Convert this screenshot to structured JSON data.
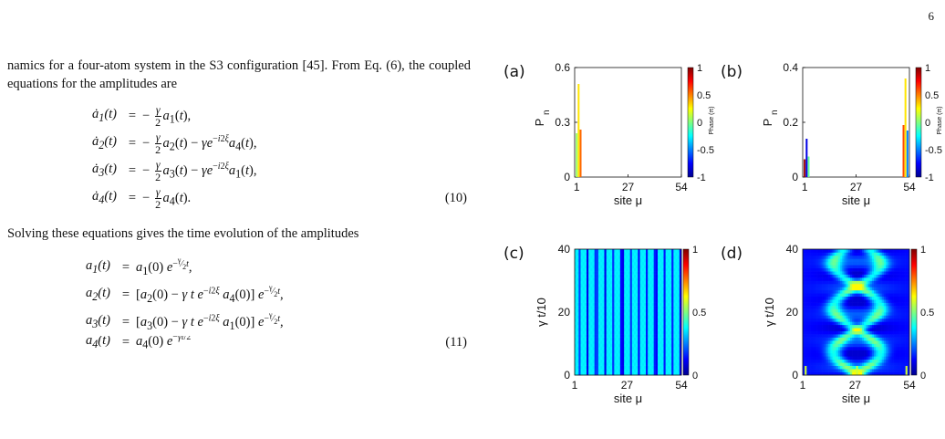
{
  "page_number": "6",
  "text": {
    "para1": "namics for a four-atom system in the S3 configuration [45]. From Eq. (6), the coupled equations for the amplitudes are",
    "para2": "Solving these equations gives the time evolution of the amplitudes",
    "eq10_number": "(10)",
    "eq11_number": "(11)",
    "eq10": [
      {
        "lhs": "ȧ₁(t)",
        "rhs": "a₁(t),"
      },
      {
        "lhs": "ȧ₂(t)",
        "rhs": "a₂(t) − γe^{−i2ξ} a₄(t),"
      },
      {
        "lhs": "ȧ₃(t)",
        "rhs": "a₃(t) − γe^{−i2ξ} a₁(t),"
      },
      {
        "lhs": "ȧ₄(t)",
        "rhs": "a₄(t)."
      }
    ],
    "eq11": [
      {
        "lhs": "a₁(t)",
        "rhs": "a₁(0) e^{−γt/2},"
      },
      {
        "lhs": "a₂(t)",
        "rhs": "[a₂(0) − γ t e^{−i2ξ} a₄(0)] e^{−γt/2},"
      },
      {
        "lhs": "a₃(t)",
        "rhs": "[a₃(0) − γ t e^{−i2ξ} a₁(0)] e^{−γt/2},"
      },
      {
        "lhs": "a₄(t)",
        "rhs": "a₄(0) e^{−γt/2}"
      }
    ]
  },
  "chart_data": [
    {
      "panel": "(a)",
      "type": "bar",
      "xlabel": "site μ",
      "ylabel": "P_n",
      "xticks": [
        1,
        27,
        54
      ],
      "yticks": [
        "0",
        "0.3",
        "0.6"
      ],
      "ylim": [
        0,
        0.6
      ],
      "xlim": [
        0,
        54
      ],
      "colorbar": {
        "label": "Phase (π)",
        "ticks": [
          "1",
          "0.5",
          "0",
          "-0.5",
          "-1"
        ]
      },
      "bars": [
        {
          "site": 1,
          "value": 0.24,
          "phase": 0.05
        },
        {
          "site": 2,
          "value": 0.51,
          "phase": 0.3
        },
        {
          "site": 3,
          "value": 0.26,
          "phase": 0.55
        }
      ]
    },
    {
      "panel": "(b)",
      "type": "bar",
      "xlabel": "site μ",
      "ylabel": "P_n",
      "xticks": [
        1,
        27,
        54
      ],
      "yticks": [
        "0",
        "0.2",
        "0.4"
      ],
      "ylim": [
        0,
        0.4
      ],
      "xlim": [
        0,
        54
      ],
      "colorbar": {
        "label": "Phase (π)",
        "ticks": [
          "1",
          "0.5",
          "0",
          "-0.5",
          "-1"
        ]
      },
      "bars": [
        {
          "site": 1,
          "value": 0.065,
          "phase": 0.95
        },
        {
          "site": 2,
          "value": 0.14,
          "phase": -0.8
        },
        {
          "site": 3,
          "value": 0.075,
          "phase": -0.05
        },
        {
          "site": 51,
          "value": 0.19,
          "phase": 0.6
        },
        {
          "site": 52,
          "value": 0.36,
          "phase": 0.3
        },
        {
          "site": 53,
          "value": 0.17,
          "phase": -0.5
        }
      ]
    },
    {
      "panel": "(c)",
      "type": "heatmap",
      "xlabel": "site μ",
      "ylabel": "γ t/10",
      "xticks": [
        1,
        27,
        54
      ],
      "yticks": [
        "0",
        "20",
        "40"
      ],
      "ylim": [
        0,
        40
      ],
      "xlim": [
        1,
        54
      ],
      "colorbar": {
        "ticks": [
          "1",
          "0.5",
          "0"
        ]
      }
    },
    {
      "panel": "(d)",
      "type": "heatmap",
      "xlabel": "site μ",
      "ylabel": "γ t/10",
      "xticks": [
        1,
        27,
        54
      ],
      "yticks": [
        "0",
        "20",
        "40"
      ],
      "ylim": [
        0,
        40
      ],
      "xlim": [
        1,
        54
      ],
      "colorbar": {
        "ticks": [
          "1",
          "0.5",
          "0"
        ]
      }
    }
  ]
}
